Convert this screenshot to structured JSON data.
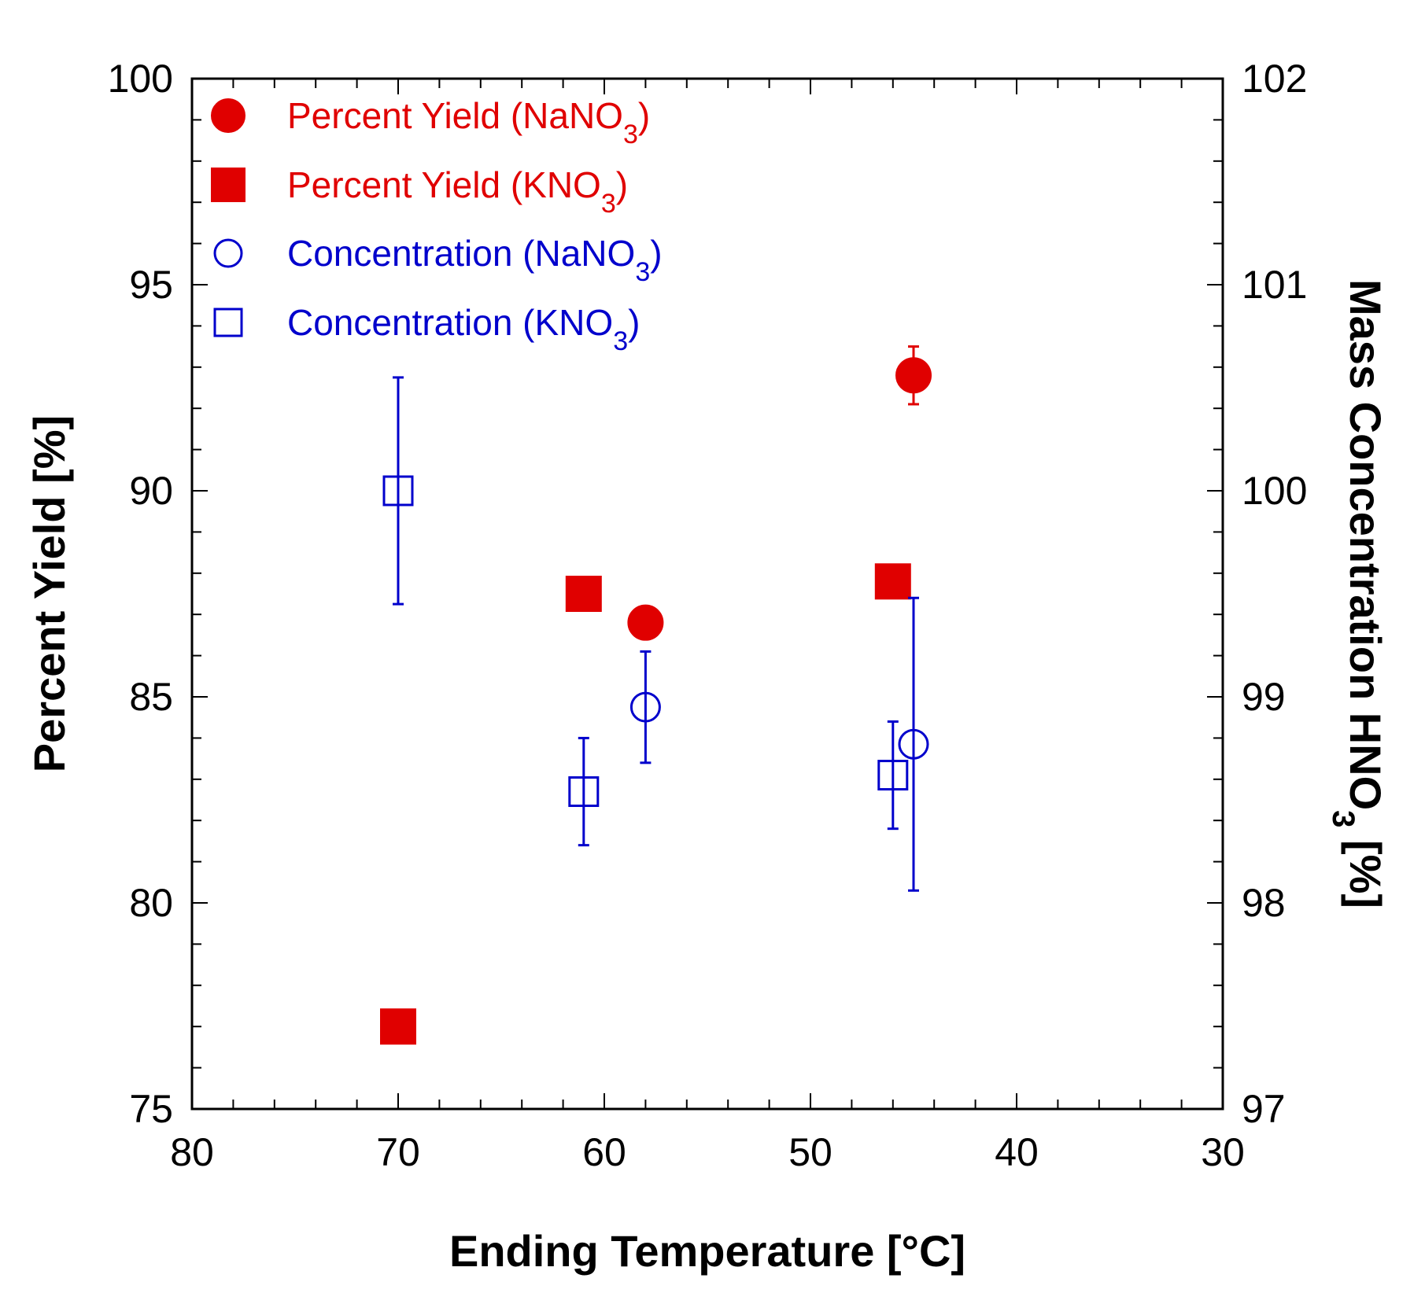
{
  "chart_data": {
    "type": "scatter",
    "xlabel": "Ending Temperature [°C]",
    "ylabel": "Percent Yield [%]",
    "y2label": "Mass Concentration HNO3 [%]",
    "y2label_parts": {
      "main": "Mass Concentration HNO",
      "sub": "3",
      "tail": " [%]"
    },
    "xlim": [
      80,
      30
    ],
    "ylim": [
      75,
      100
    ],
    "y2lim": [
      97,
      102
    ],
    "x_ticks": [
      80,
      70,
      60,
      50,
      40,
      30
    ],
    "y_ticks": [
      75,
      80,
      85,
      90,
      95,
      100
    ],
    "y2_ticks": [
      97,
      98,
      99,
      100,
      101,
      102
    ],
    "legend_position": "top-left",
    "colors": {
      "yield": "#e00000",
      "concentration": "#0000cc"
    },
    "series": [
      {
        "name": "Percent Yield (NaNO3)",
        "legend": {
          "main": "Percent Yield (NaNO",
          "sub": "3",
          "tail": ")"
        },
        "axis": "left",
        "marker": "circle",
        "filled": true,
        "color": "#e00000",
        "points": [
          {
            "x": 58,
            "y": 86.8,
            "err": 0.2
          },
          {
            "x": 45,
            "y": 92.8,
            "err": 0.7
          }
        ]
      },
      {
        "name": "Percent Yield (KNO3)",
        "legend": {
          "main": "Percent Yield (KNO",
          "sub": "3",
          "tail": ")"
        },
        "axis": "left",
        "marker": "square",
        "filled": true,
        "color": "#e00000",
        "points": [
          {
            "x": 70,
            "y": 77.0,
            "err": 0.4
          },
          {
            "x": 61,
            "y": 87.5,
            "err": 0.2
          },
          {
            "x": 46,
            "y": 87.8,
            "err": 0.4
          }
        ]
      },
      {
        "name": "Concentration (NaNO3)",
        "legend": {
          "main": "Concentration (NaNO",
          "sub": "3",
          "tail": ")"
        },
        "axis": "right",
        "marker": "circle",
        "filled": false,
        "color": "#0000cc",
        "points": [
          {
            "x": 58,
            "y": 98.95,
            "err": 0.27
          },
          {
            "x": 45,
            "y": 98.77,
            "err": 0.71
          }
        ]
      },
      {
        "name": "Concentration (KNO3)",
        "legend": {
          "main": "Concentration (KNO",
          "sub": "3",
          "tail": ")"
        },
        "axis": "right",
        "marker": "square",
        "filled": false,
        "color": "#0000cc",
        "points": [
          {
            "x": 70,
            "y": 100.0,
            "err": 0.55
          },
          {
            "x": 61,
            "y": 98.54,
            "err": 0.26
          },
          {
            "x": 46,
            "y": 98.62,
            "err": 0.26
          }
        ]
      }
    ]
  }
}
